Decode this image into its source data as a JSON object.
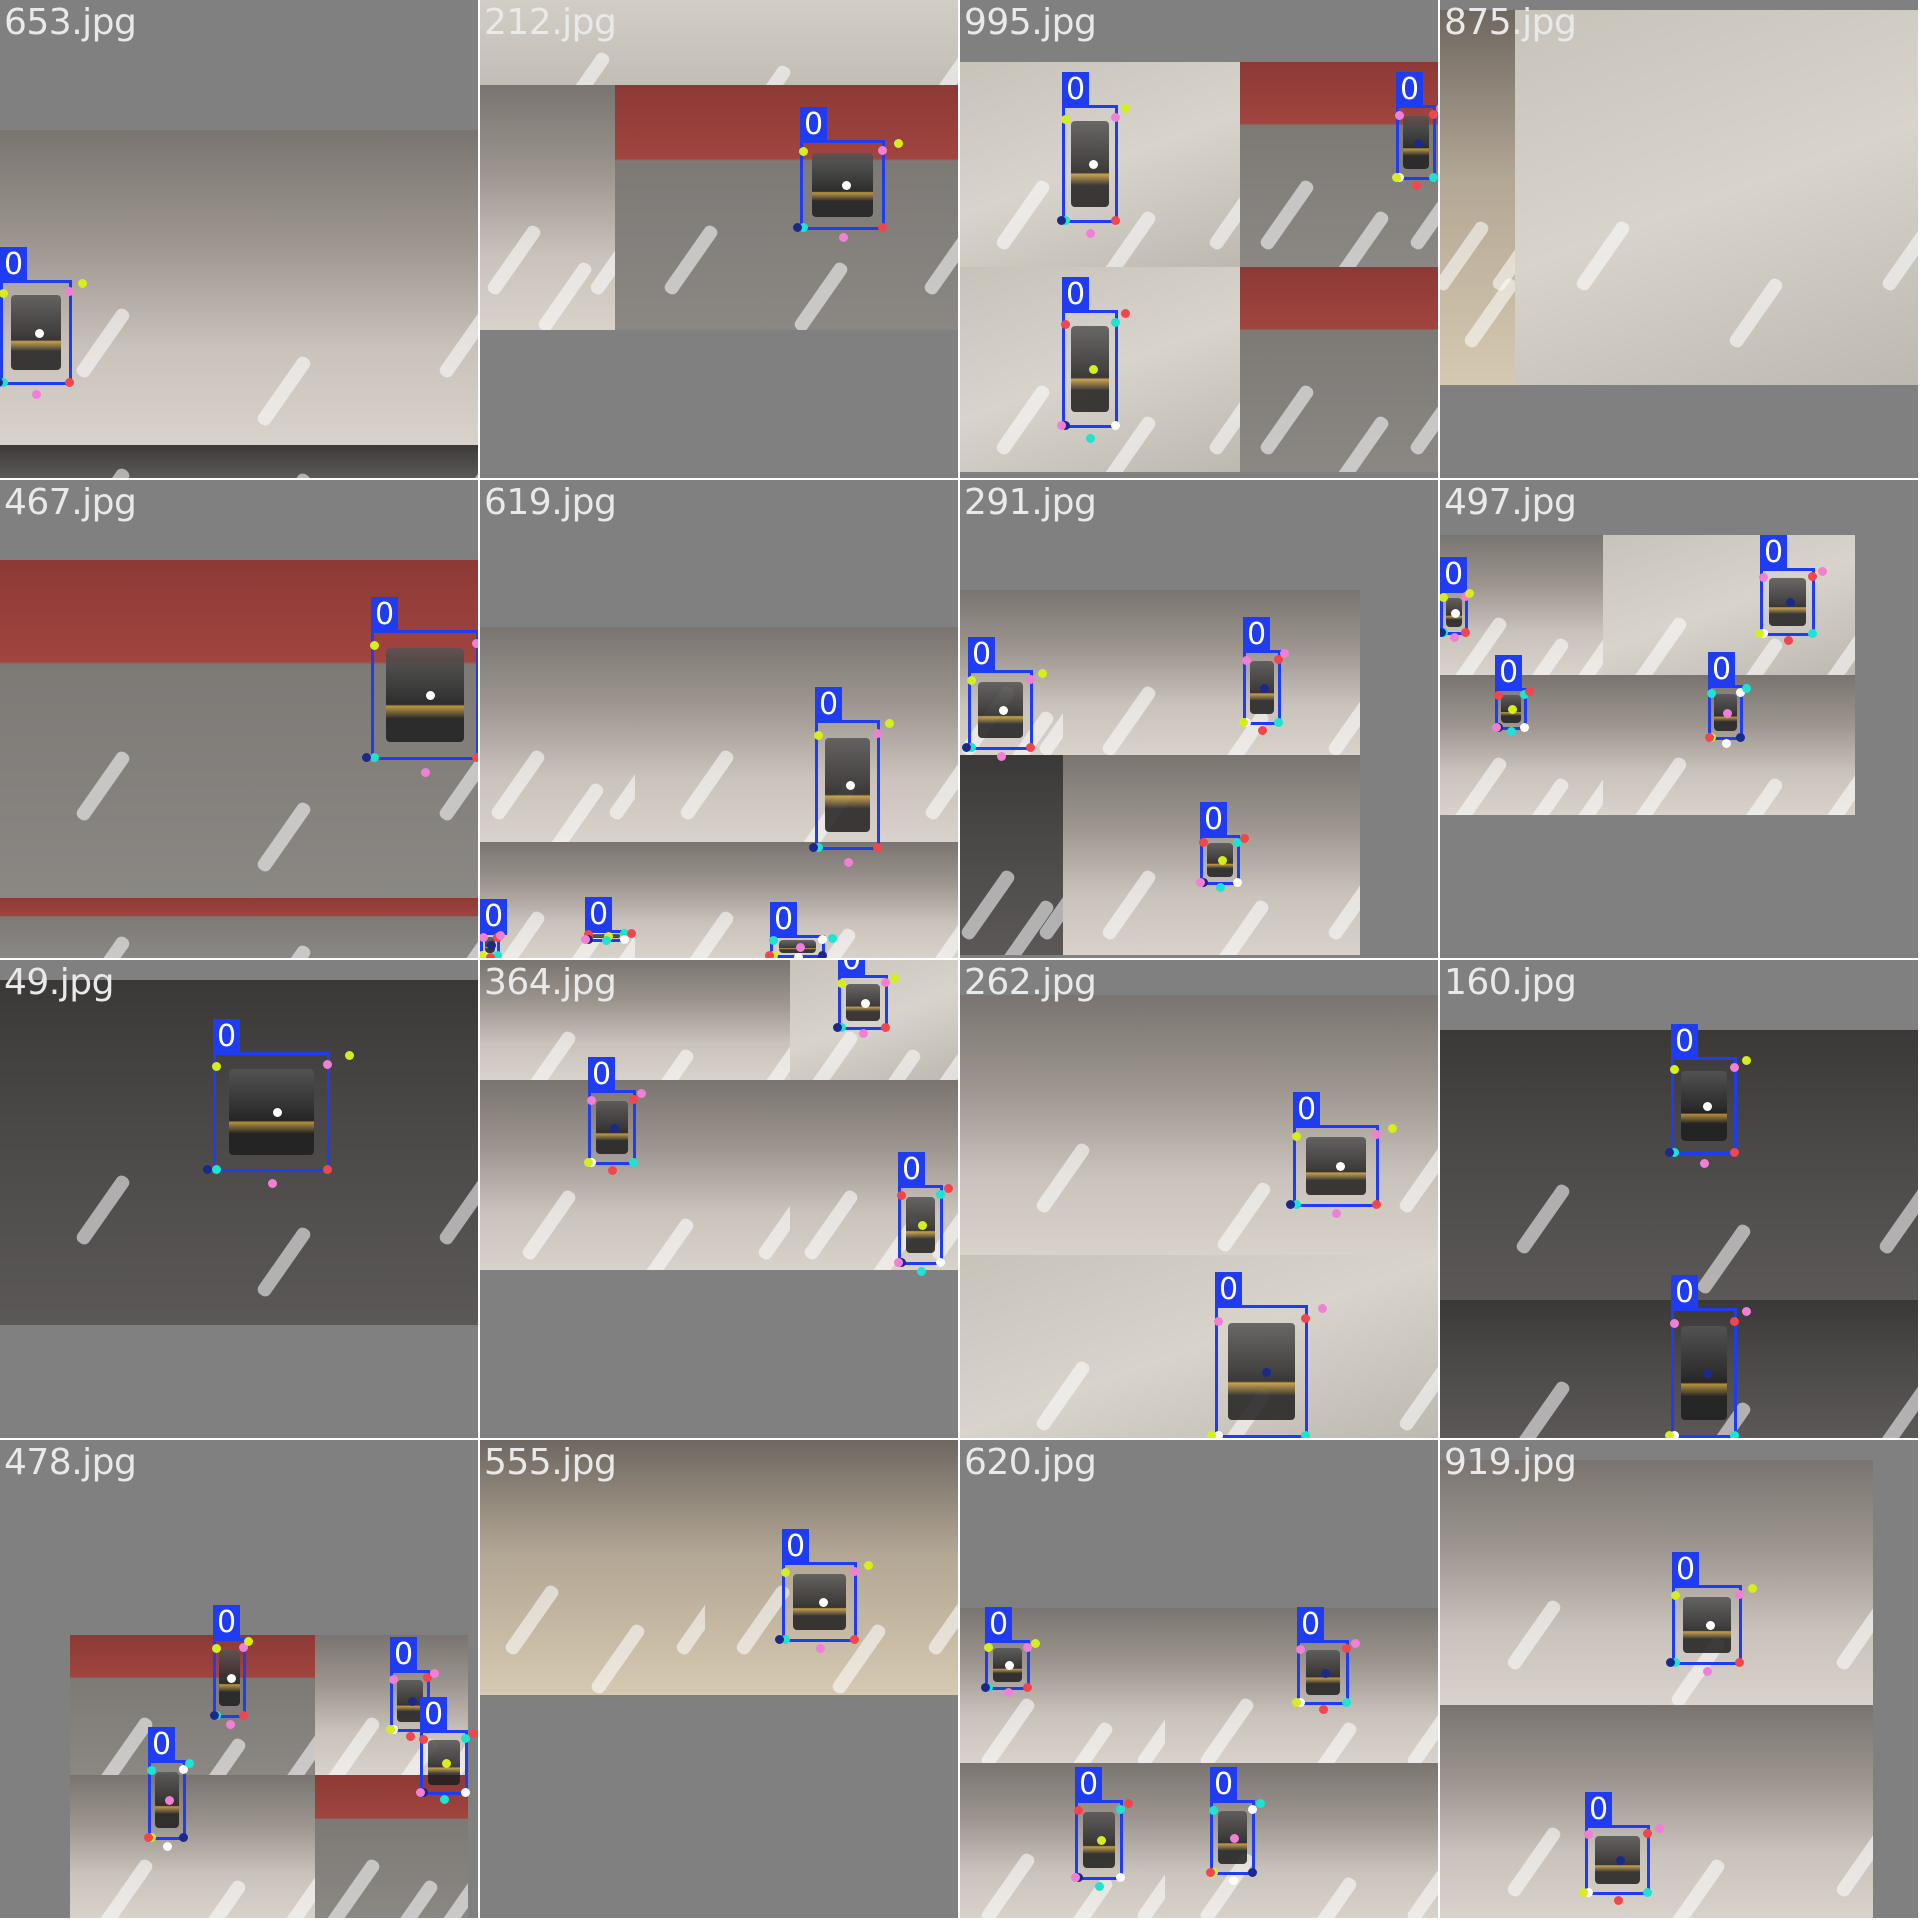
{
  "grid": {
    "tiles": [
      {
        "name": "653.jpg"
      },
      {
        "name": "212.jpg"
      },
      {
        "name": "995.jpg"
      },
      {
        "name": "875.jpg"
      },
      {
        "name": "467.jpg"
      },
      {
        "name": "619.jpg"
      },
      {
        "name": "291.jpg"
      },
      {
        "name": "497.jpg"
      },
      {
        "name": "49.jpg"
      },
      {
        "name": "364.jpg"
      },
      {
        "name": "262.jpg"
      },
      {
        "name": "160.jpg"
      },
      {
        "name": "478.jpg"
      },
      {
        "name": "555.jpg"
      },
      {
        "name": "620.jpg"
      },
      {
        "name": "919.jpg"
      }
    ],
    "box_label": "0",
    "colors": {
      "box": "#1f3cf0",
      "label_text": "#e9e9e9",
      "letterbox": "#808080",
      "keypoints": [
        "#d7ee1e",
        "#f27fd6",
        "#f2464c",
        "#1de3d0",
        "#ffffff",
        "#1b2a8a"
      ]
    }
  }
}
